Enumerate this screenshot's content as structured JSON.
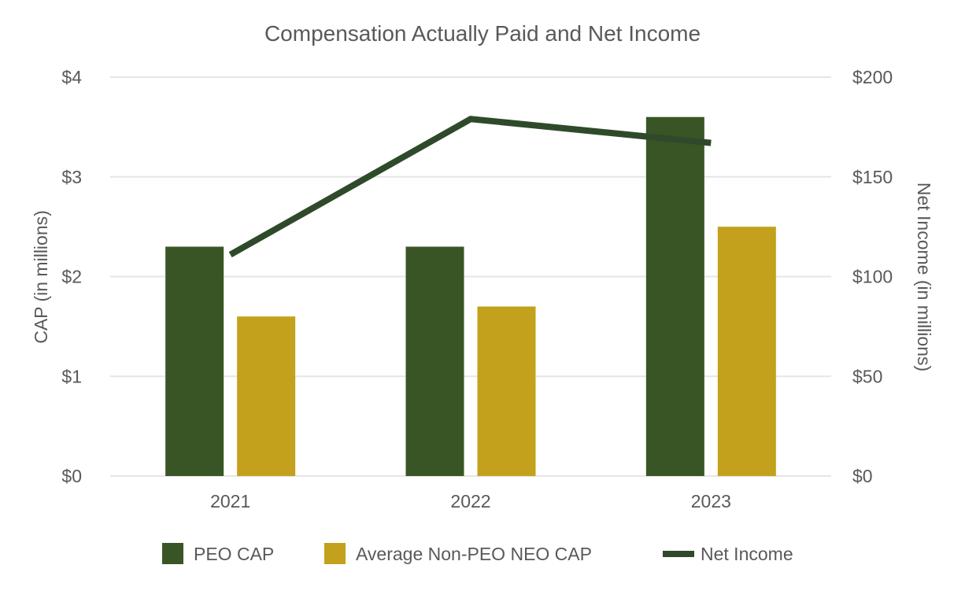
{
  "chart_data": {
    "type": "bar",
    "title": "Compensation Actually Paid and Net Income",
    "categories": [
      "2021",
      "2022",
      "2023"
    ],
    "series": [
      {
        "name": "PEO CAP",
        "type": "bar",
        "axis": "left",
        "values": [
          2.3,
          2.3,
          3.6
        ],
        "color": "#3a5525"
      },
      {
        "name": "Average Non-PEO NEO CAP",
        "type": "bar",
        "axis": "left",
        "values": [
          1.6,
          1.7,
          2.5
        ],
        "color": "#c4a11c"
      },
      {
        "name": "Net Income",
        "type": "line",
        "axis": "right",
        "values": [
          111,
          179,
          167
        ],
        "color": "#2f4a2a"
      }
    ],
    "y_left": {
      "label": "CAP (in millions)",
      "ylim": [
        0,
        4
      ],
      "ticks": [
        0,
        1,
        2,
        3,
        4
      ],
      "tick_labels": [
        "$0",
        "$1",
        "$2",
        "$3",
        "$4"
      ]
    },
    "y_right": {
      "label": "Net Income (in millions)",
      "ylim": [
        0,
        200
      ],
      "ticks": [
        0,
        50,
        100,
        150,
        200
      ],
      "tick_labels": [
        "$0",
        "$50",
        "$100",
        "$150",
        "$200"
      ]
    },
    "grid": true,
    "legend_position": "bottom"
  }
}
